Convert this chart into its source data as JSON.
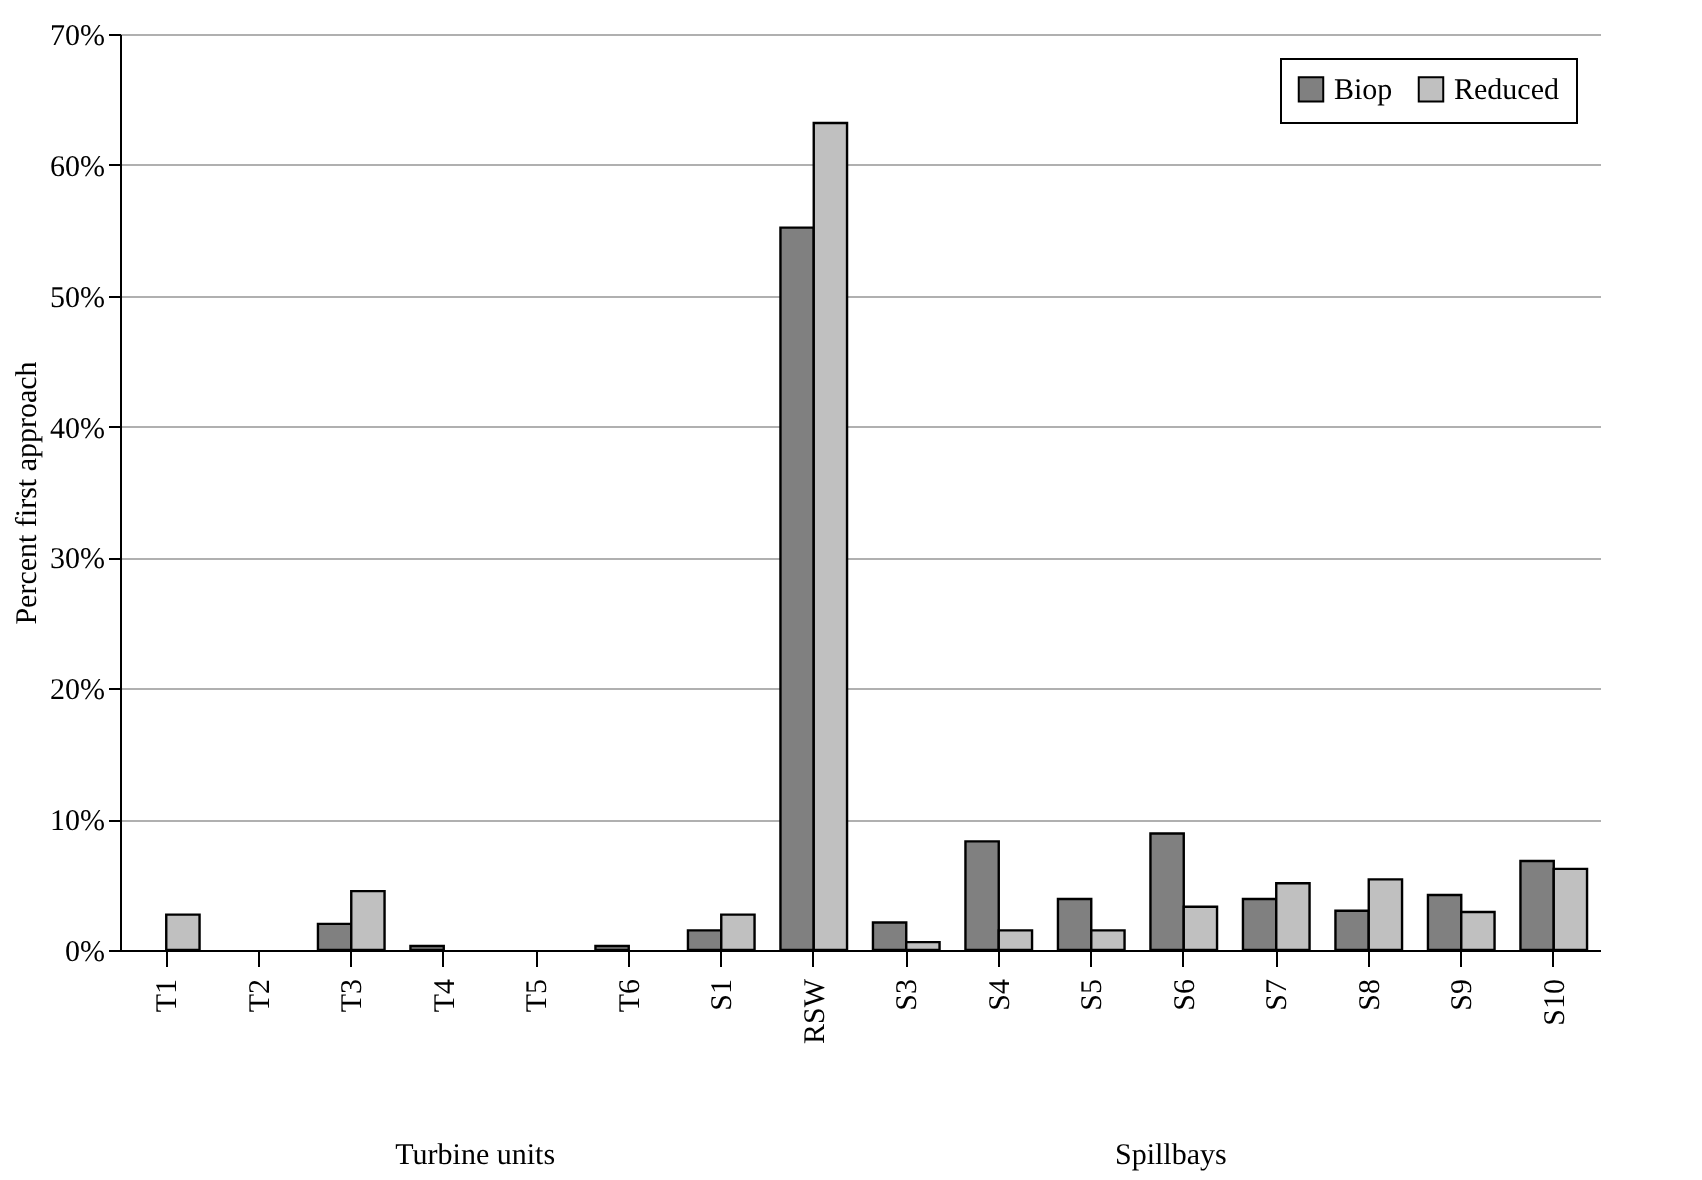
{
  "chart_data": {
    "type": "bar",
    "ylabel": "Percent first approach",
    "categories": [
      "T1",
      "T2",
      "T3",
      "T4",
      "T5",
      "T6",
      "S1",
      "RSW",
      "S3",
      "S4",
      "S5",
      "S6",
      "S7",
      "S8",
      "S9",
      "S10"
    ],
    "series": [
      {
        "name": "Biop",
        "color": "#808080",
        "values": [
          0,
          0,
          2.0,
          0.3,
          0,
          0.3,
          1.5,
          55.2,
          2.1,
          8.3,
          3.9,
          8.9,
          3.9,
          3.0,
          4.2,
          6.8
        ]
      },
      {
        "name": "Reduced",
        "color": "#c0c0c0",
        "values": [
          2.7,
          0,
          4.5,
          0,
          0,
          0,
          2.7,
          63.2,
          0.6,
          1.5,
          1.5,
          3.3,
          5.1,
          5.4,
          2.9,
          6.2
        ]
      }
    ],
    "ylim": [
      0,
      70
    ],
    "yticks": [
      {
        "value": 0,
        "label": "0%"
      },
      {
        "value": 10,
        "label": "10%"
      },
      {
        "value": 20,
        "label": "20%"
      },
      {
        "value": 30,
        "label": "30%"
      },
      {
        "value": 40,
        "label": "40%"
      },
      {
        "value": 50,
        "label": "50%"
      },
      {
        "value": 60,
        "label": "60%"
      },
      {
        "value": 70,
        "label": "70%"
      }
    ],
    "grid": "y",
    "legend": "top right",
    "annotations": [
      "Turbine units",
      "Spillbays"
    ]
  }
}
